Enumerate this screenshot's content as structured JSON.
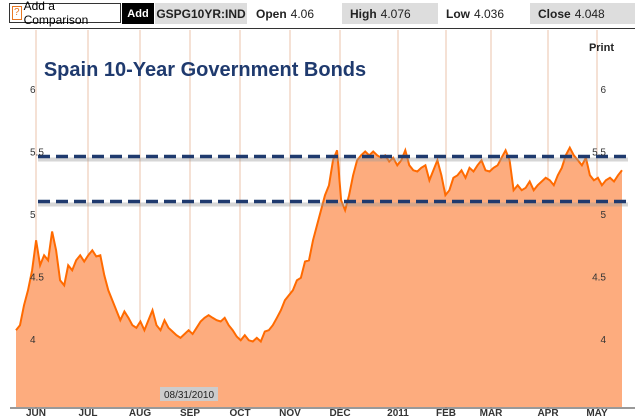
{
  "toolbar": {
    "help": "?",
    "comparison_label": "Add a Comparison",
    "add_label": "Add",
    "ticker": "GSPG10YR:IND",
    "open_label": "Open",
    "open": "4.06",
    "high_label": "High",
    "high": "4.076",
    "low_label": "Low",
    "low": "4.036",
    "close_label": "Close",
    "close": "4.048",
    "print_label": "Print"
  },
  "tooltip_date": "08/31/2010",
  "colors": {
    "fill": "#fdac7e",
    "line": "#ff6a00",
    "dash": "#1f3a6e",
    "title": "#1f3a6e"
  },
  "chart_data": {
    "type": "area",
    "title": "Spain 10-Year Government Bonds",
    "ylim": [
      3.48,
      6.1
    ],
    "yticks": [
      {
        "v": 6,
        "l": "6"
      },
      {
        "v": 5.5,
        "l": "5.5"
      },
      {
        "v": 5,
        "l": "5"
      },
      {
        "v": 4.5,
        "l": "4.5"
      },
      {
        "v": 4,
        "l": "4"
      }
    ],
    "xticks": [
      "JUN",
      "JUL",
      "AUG",
      "SEP",
      "OCT",
      "NOV",
      "DEC",
      "2011",
      "FEB",
      "MAR",
      "APR",
      "MAY"
    ],
    "reference_lines": [
      5.46,
      5.1
    ],
    "values": [
      4.07,
      4.11,
      4.27,
      4.39,
      4.55,
      4.79,
      4.59,
      4.67,
      4.63,
      4.86,
      4.71,
      4.47,
      4.43,
      4.59,
      4.55,
      4.63,
      4.67,
      4.62,
      4.67,
      4.71,
      4.66,
      4.67,
      4.51,
      4.39,
      4.31,
      4.23,
      4.15,
      4.22,
      4.17,
      4.11,
      4.09,
      4.14,
      4.07,
      4.15,
      4.23,
      4.11,
      4.07,
      4.15,
      4.09,
      4.06,
      4.03,
      4.01,
      4.04,
      4.07,
      4.04,
      4.09,
      4.14,
      4.17,
      4.19,
      4.17,
      4.15,
      4.14,
      4.17,
      4.11,
      4.07,
      4.02,
      3.99,
      4.03,
      3.99,
      3.98,
      4.01,
      3.98,
      4.06,
      4.07,
      4.11,
      4.17,
      4.23,
      4.31,
      4.35,
      4.39,
      4.47,
      4.49,
      4.62,
      4.63,
      4.79,
      4.91,
      5.03,
      5.15,
      5.23,
      5.43,
      5.51,
      5.11,
      5.03,
      5.15,
      5.31,
      5.43,
      5.47,
      5.5,
      5.47,
      5.5,
      5.47,
      5.45,
      5.47,
      5.42,
      5.45,
      5.39,
      5.43,
      5.51,
      5.39,
      5.35,
      5.34,
      5.37,
      5.39,
      5.27,
      5.35,
      5.43,
      5.31,
      5.15,
      5.19,
      5.29,
      5.31,
      5.35,
      5.29,
      5.37,
      5.34,
      5.39,
      5.43,
      5.35,
      5.34,
      5.37,
      5.39,
      5.45,
      5.51,
      5.43,
      5.19,
      5.23,
      5.19,
      5.21,
      5.26,
      5.19,
      5.23,
      5.26,
      5.29,
      5.27,
      5.23,
      5.31,
      5.37,
      5.47,
      5.53,
      5.47,
      5.43,
      5.39,
      5.45,
      5.31,
      5.27,
      5.29,
      5.23,
      5.27,
      5.29,
      5.26,
      5.31,
      5.35
    ]
  }
}
